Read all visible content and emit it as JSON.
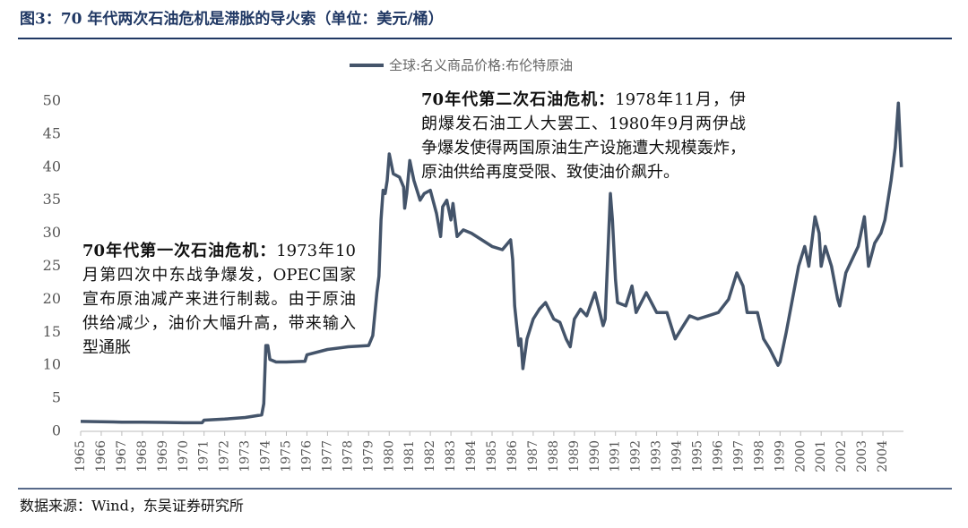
{
  "chart_data": {
    "type": "line",
    "title": "图3：70 年代两次石油危机是滞胀的导火索（单位：美元/桶）",
    "source": "数据来源：Wind，东吴证券研究所",
    "annotations": [
      {
        "lead": "70年代第一次石油危机：",
        "text": "1973年10月第四次中东战争爆发，OPEC国家宣布原油减产来进行制裁。由于原油供给减少，油价大幅升高，带来输入型通胀"
      },
      {
        "lead": "70年代第二次石油危机：",
        "text": "1978年11月，伊朗爆发石油工人大罢工、1980年9月两伊战争爆发使得两国原油生产设施遭大规模轰炸，原油供给再度受限、致使油价飙升。"
      }
    ],
    "x": [
      1965,
      1966,
      1967,
      1968,
      1969,
      1970,
      1970.9,
      1971,
      1972,
      1973,
      1973.8,
      1973.9,
      1974.0,
      1974.1,
      1974.2,
      1974.5,
      1975,
      1975.9,
      1976,
      1977,
      1978,
      1979.0,
      1979.2,
      1979.4,
      1979.5,
      1979.6,
      1979.7,
      1979.8,
      1979.9,
      1980.0,
      1980.2,
      1980.5,
      1980.7,
      1980.75,
      1980.85,
      1981.0,
      1981.2,
      1981.5,
      1981.7,
      1982.0,
      1982.3,
      1982.5,
      1982.6,
      1982.8,
      1983.0,
      1983.1,
      1983.3,
      1983.6,
      1984.0,
      1984.5,
      1985,
      1985.5,
      1985.9,
      1986.0,
      1986.1,
      1986.3,
      1986.4,
      1986.5,
      1986.7,
      1987.0,
      1987.3,
      1987.6,
      1988.0,
      1988.3,
      1988.6,
      1988.8,
      1989.0,
      1989.3,
      1989.6,
      1990.0,
      1990.4,
      1990.5,
      1990.75,
      1990.85,
      1991.0,
      1991.1,
      1991.5,
      1991.8,
      1992.0,
      1992.5,
      1993.0,
      1993.5,
      1993.9,
      1994.3,
      1994.6,
      1995,
      1995.5,
      1996,
      1996.5,
      1996.9,
      1997.2,
      1997.4,
      1997.9,
      1998.2,
      1998.5,
      1998.9,
      1999.0,
      1999.3,
      1999.6,
      1999.9,
      2000.2,
      2000.4,
      2000.7,
      2000.9,
      2001.0,
      2001.2,
      2001.5,
      2001.8,
      2001.9,
      2002.2,
      2002.5,
      2002.8,
      2003.1,
      2003.3,
      2003.6,
      2003.9,
      2004.1,
      2004.4,
      2004.6,
      2004.75,
      2004.9
    ],
    "series": [
      {
        "name": "全球:名义商品价格:布伦特原油",
        "color": "#44546a",
        "values": [
          1.5,
          1.45,
          1.4,
          1.4,
          1.35,
          1.3,
          1.3,
          1.7,
          1.85,
          2.1,
          2.5,
          4.2,
          13,
          13,
          10.9,
          10.5,
          10.5,
          10.6,
          11.6,
          12.4,
          12.8,
          13,
          14.5,
          21,
          23.5,
          32,
          36.5,
          36,
          38,
          42,
          39,
          38.5,
          37,
          33.8,
          36,
          41,
          38,
          35,
          36,
          36.5,
          33,
          29.5,
          34,
          35,
          32,
          34.5,
          29.5,
          30.5,
          30,
          29,
          28,
          27.5,
          29,
          26,
          19,
          13,
          14,
          9.5,
          14,
          17,
          18.5,
          19.5,
          17,
          16.5,
          14,
          12.8,
          17,
          18.5,
          17.5,
          21,
          16,
          17,
          36,
          32,
          23,
          19.5,
          19,
          22,
          18,
          21,
          18,
          18,
          14,
          16,
          17.5,
          17,
          17.5,
          18,
          20,
          24,
          22,
          18,
          18,
          14,
          12.5,
          10,
          10.5,
          15,
          20,
          25,
          28,
          25,
          32.5,
          30,
          25,
          28,
          25,
          20,
          19,
          24,
          26,
          28,
          32.5,
          25,
          28.5,
          30,
          32,
          38,
          43,
          49.7,
          40
        ]
      }
    ],
    "xlim": [
      1965,
      2005
    ],
    "xticks": [
      1965,
      1966,
      1967,
      1968,
      1969,
      1970,
      1971,
      1972,
      1973,
      1974,
      1975,
      1976,
      1977,
      1978,
      1979,
      1980,
      1981,
      1982,
      1983,
      1984,
      1985,
      1986,
      1987,
      1988,
      1989,
      1990,
      1991,
      1992,
      1993,
      1994,
      1995,
      1996,
      1997,
      1998,
      1999,
      2000,
      2001,
      2002,
      2003,
      2004
    ],
    "ylim": [
      0,
      50
    ],
    "yticks": [
      0,
      5,
      10,
      15,
      20,
      25,
      30,
      35,
      40,
      45,
      50
    ],
    "grid": false,
    "legend": "top"
  }
}
